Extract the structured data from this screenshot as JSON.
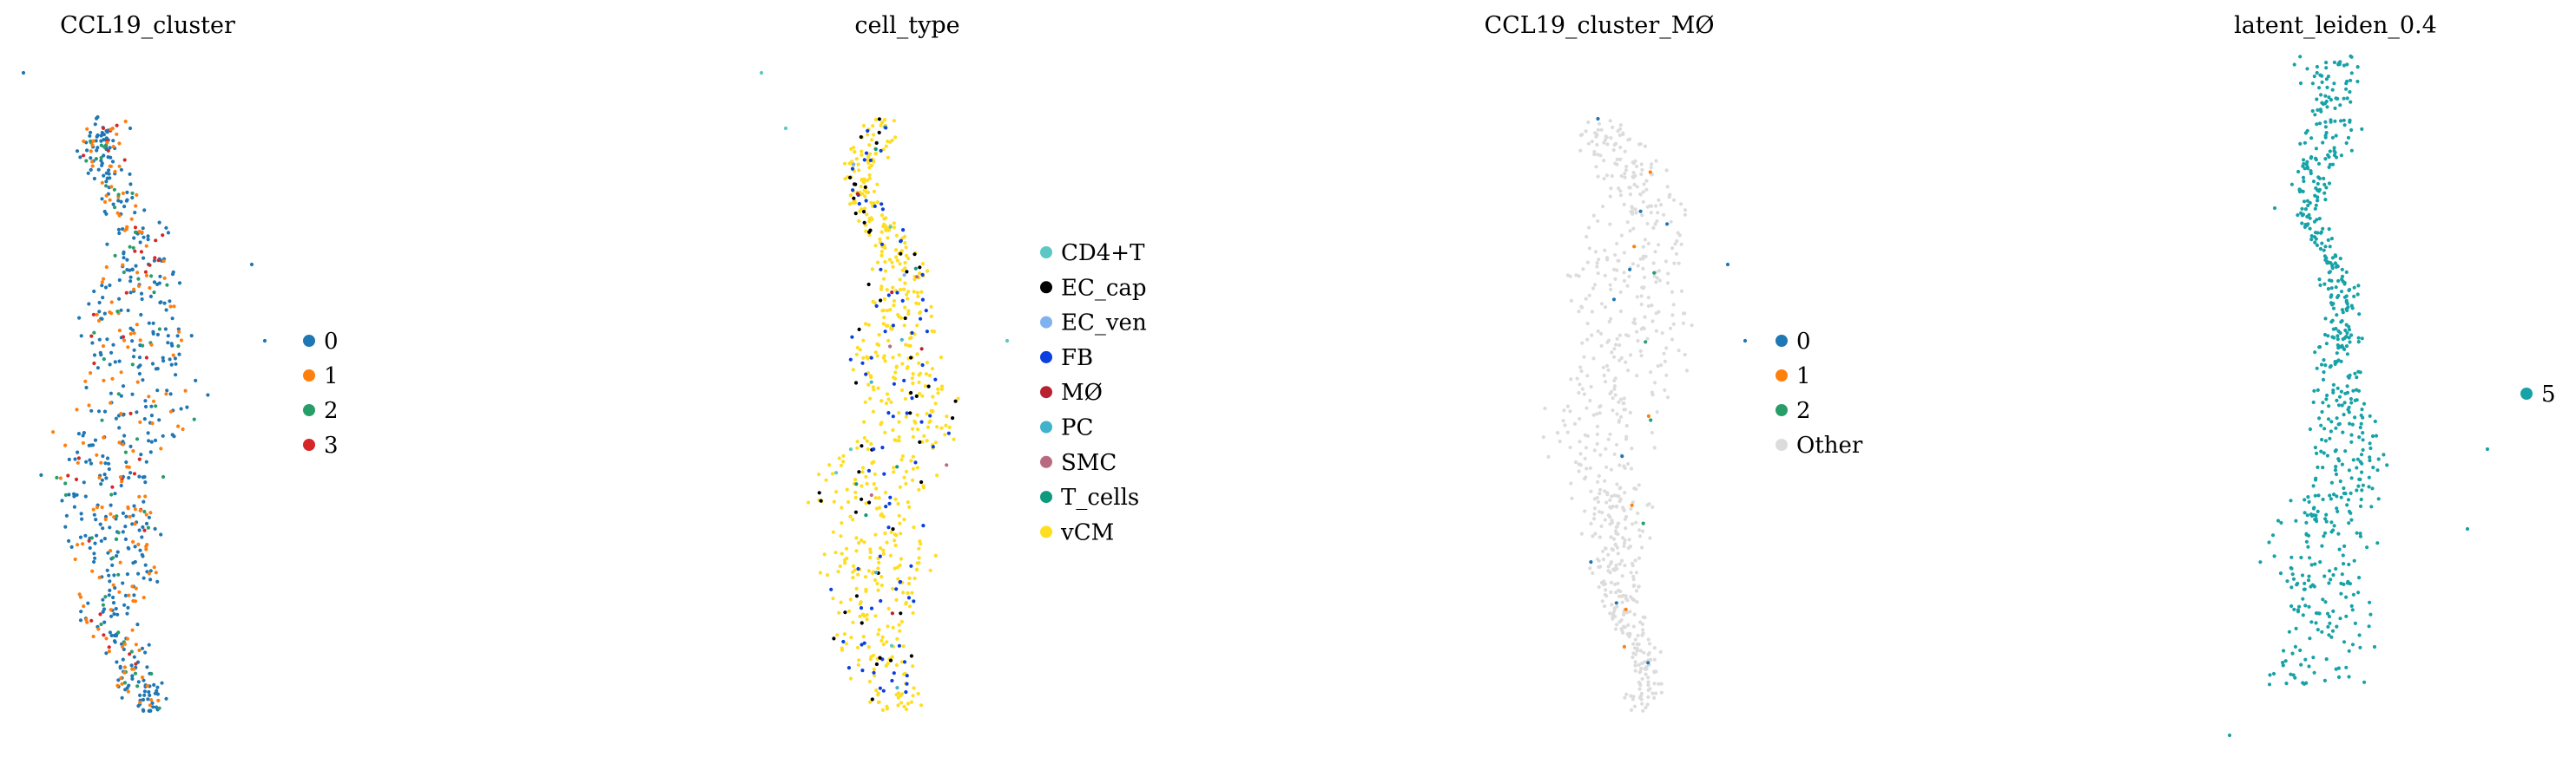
{
  "chart_data": [
    {
      "type": "scatter",
      "title": "CCL19_cluster",
      "legend_position": "right",
      "grid": false,
      "axes_visible": false,
      "legend": [
        {
          "label": "0",
          "color": "#1f77b4"
        },
        {
          "label": "1",
          "color": "#ff7f0e"
        },
        {
          "label": "2",
          "color": "#279e68"
        },
        {
          "label": "3",
          "color": "#d62728"
        }
      ],
      "point_mix": [
        0.62,
        0.24,
        0.08,
        0.06
      ]
    },
    {
      "type": "scatter",
      "title": "cell_type",
      "legend_position": "right",
      "grid": false,
      "axes_visible": false,
      "legend": [
        {
          "label": "CD4+T",
          "color": "#5bc8c4"
        },
        {
          "label": "EC_cap",
          "color": "#000000"
        },
        {
          "label": "EC_ven",
          "color": "#7fb2f0"
        },
        {
          "label": "FB",
          "color": "#0b3fe0"
        },
        {
          "label": "MØ",
          "color": "#b8202f"
        },
        {
          "label": "PC",
          "color": "#3fb2cc"
        },
        {
          "label": "SMC",
          "color": "#b86b80"
        },
        {
          "label": "T_cells",
          "color": "#0e9a7f"
        },
        {
          "label": "vCM",
          "color": "#ffdd1f"
        }
      ],
      "point_mix": [
        0.005,
        0.06,
        0.005,
        0.1,
        0.005,
        0.005,
        0.005,
        0.005,
        0.81
      ]
    },
    {
      "type": "scatter",
      "title": "CCL19_cluster_MØ",
      "legend_position": "right",
      "grid": false,
      "axes_visible": false,
      "legend": [
        {
          "label": "0",
          "color": "#1f77b4"
        },
        {
          "label": "1",
          "color": "#ff7f0e"
        },
        {
          "label": "2",
          "color": "#279e68"
        },
        {
          "label": "Other",
          "color": "#dcdcdc"
        }
      ],
      "point_mix": [
        0.015,
        0.006,
        0.004,
        0.975
      ]
    },
    {
      "type": "scatter",
      "title": "latent_leiden_0.4",
      "legend_position": "right",
      "grid": false,
      "axes_visible": false,
      "legend": [
        {
          "label": "5",
          "color": "#17a2a8"
        }
      ],
      "point_mix": [
        1.0
      ]
    }
  ]
}
